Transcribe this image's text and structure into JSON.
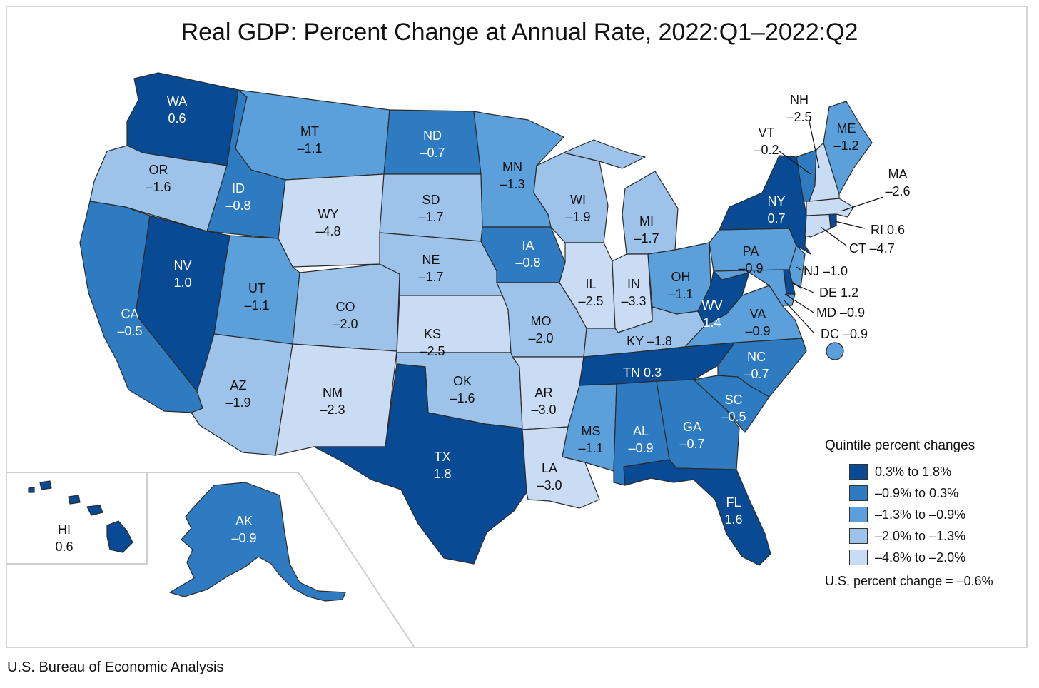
{
  "title": "Real GDP: Percent Change at Annual Rate, 2022:Q1–2022:Q2",
  "source": "U.S. Bureau of Economic Analysis",
  "legend": {
    "title": "Quintile percent changes",
    "classes": [
      {
        "label": "0.3% to 1.8%",
        "color": "#084a94"
      },
      {
        "label": "–0.9% to 0.3%",
        "color": "#2e7bc1"
      },
      {
        "label": "–1.3% to –0.9%",
        "color": "#5b9fdb"
      },
      {
        "label": "–2.0% to –1.3%",
        "color": "#9ec3ea"
      },
      {
        "label": "–4.8% to –2.0%",
        "color": "#c9dcf3"
      }
    ],
    "us_change": "U.S. percent change = –0.6%"
  },
  "states": {
    "WA": {
      "abbr": "WA",
      "value": "0.6",
      "class": 0
    },
    "OR": {
      "abbr": "OR",
      "value": "–1.6",
      "class": 3
    },
    "CA": {
      "abbr": "CA",
      "value": "–0.5",
      "class": 1
    },
    "ID": {
      "abbr": "ID",
      "value": "–0.8",
      "class": 1
    },
    "NV": {
      "abbr": "NV",
      "value": "1.0",
      "class": 0
    },
    "MT": {
      "abbr": "MT",
      "value": "–1.1",
      "class": 2
    },
    "WY": {
      "abbr": "WY",
      "value": "–4.8",
      "class": 4
    },
    "UT": {
      "abbr": "UT",
      "value": "–1.1",
      "class": 2
    },
    "AZ": {
      "abbr": "AZ",
      "value": "–1.9",
      "class": 3
    },
    "CO": {
      "abbr": "CO",
      "value": "–2.0",
      "class": 3
    },
    "NM": {
      "abbr": "NM",
      "value": "–2.3",
      "class": 4
    },
    "ND": {
      "abbr": "ND",
      "value": "–0.7",
      "class": 1
    },
    "SD": {
      "abbr": "SD",
      "value": "–1.7",
      "class": 3
    },
    "NE": {
      "abbr": "NE",
      "value": "–1.7",
      "class": 3
    },
    "KS": {
      "abbr": "KS",
      "value": "–2.5",
      "class": 4
    },
    "OK": {
      "abbr": "OK",
      "value": "–1.6",
      "class": 3
    },
    "TX": {
      "abbr": "TX",
      "value": "1.8",
      "class": 0
    },
    "MN": {
      "abbr": "MN",
      "value": "–1.3",
      "class": 2
    },
    "IA": {
      "abbr": "IA",
      "value": "–0.8",
      "class": 1
    },
    "MO": {
      "abbr": "MO",
      "value": "–2.0",
      "class": 3
    },
    "AR": {
      "abbr": "AR",
      "value": "–3.0",
      "class": 4
    },
    "LA": {
      "abbr": "LA",
      "value": "–3.0",
      "class": 4
    },
    "WI": {
      "abbr": "WI",
      "value": "–1.9",
      "class": 3
    },
    "IL": {
      "abbr": "IL",
      "value": "–2.5",
      "class": 4
    },
    "MI": {
      "abbr": "MI",
      "value": "–1.7",
      "class": 3
    },
    "IN": {
      "abbr": "IN",
      "value": "–3.3",
      "class": 4
    },
    "OH": {
      "abbr": "OH",
      "value": "–1.1",
      "class": 2
    },
    "KY": {
      "abbr": "KY",
      "value": "–1.8",
      "class": 3
    },
    "TN": {
      "abbr": "TN",
      "value": "0.3",
      "class": 0
    },
    "MS": {
      "abbr": "MS",
      "value": "–1.1",
      "class": 2
    },
    "AL": {
      "abbr": "AL",
      "value": "–0.9",
      "class": 1
    },
    "GA": {
      "abbr": "GA",
      "value": "–0.7",
      "class": 1
    },
    "FL": {
      "abbr": "FL",
      "value": "1.6",
      "class": 0
    },
    "SC": {
      "abbr": "SC",
      "value": "–0.5",
      "class": 1
    },
    "NC": {
      "abbr": "NC",
      "value": "–0.7",
      "class": 1
    },
    "VA": {
      "abbr": "VA",
      "value": "–0.9",
      "class": 2
    },
    "WV": {
      "abbr": "WV",
      "value": "1.4",
      "class": 0
    },
    "PA": {
      "abbr": "PA",
      "value": "–0.9",
      "class": 2
    },
    "NY": {
      "abbr": "NY",
      "value": "0.7",
      "class": 0
    },
    "VT": {
      "abbr": "VT",
      "value": "–0.2",
      "class": 1
    },
    "NH": {
      "abbr": "NH",
      "value": "–2.5",
      "class": 4
    },
    "ME": {
      "abbr": "ME",
      "value": "–1.2",
      "class": 2
    },
    "MA": {
      "abbr": "MA",
      "value": "–2.6",
      "class": 4
    },
    "RI": {
      "abbr": "RI",
      "value": "0.6",
      "class": 0
    },
    "CT": {
      "abbr": "CT",
      "value": "–4.7",
      "class": 4
    },
    "NJ": {
      "abbr": "NJ",
      "value": "–1.0",
      "class": 2
    },
    "DE": {
      "abbr": "DE",
      "value": "1.2",
      "class": 0
    },
    "MD": {
      "abbr": "MD",
      "value": "–0.9",
      "class": 2
    },
    "DC": {
      "abbr": "DC",
      "value": "–0.9",
      "class": 2
    },
    "AK": {
      "abbr": "AK",
      "value": "–0.9",
      "class": 1
    },
    "HI": {
      "abbr": "HI",
      "value": "0.6",
      "class": 0
    }
  }
}
